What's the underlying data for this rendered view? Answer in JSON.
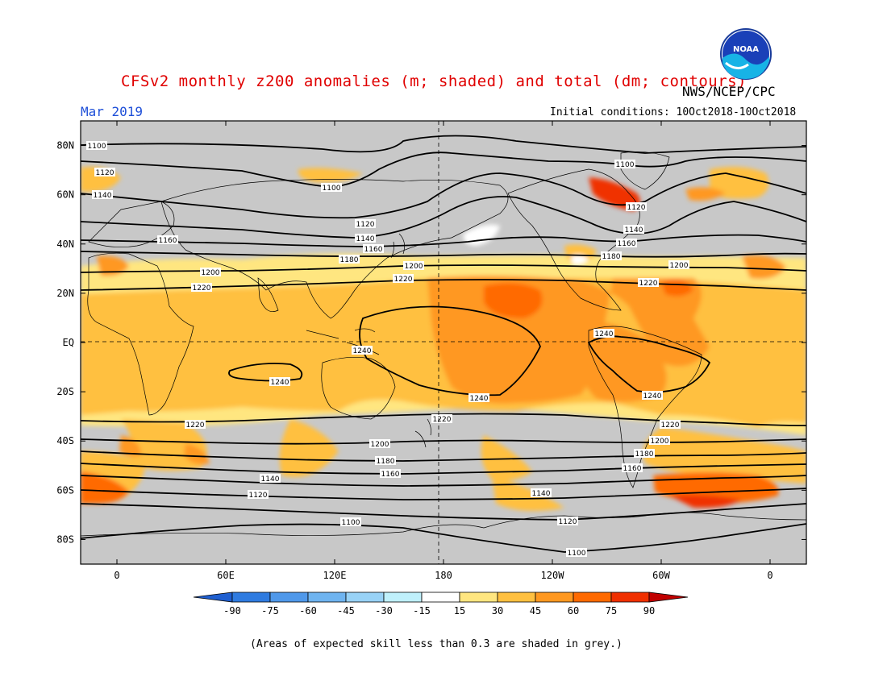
{
  "title": "CFSv2 monthly z200 anomalies (m; shaded) and total (dm; contours)",
  "source": "NWS/NCEP/CPC",
  "period": "Mar 2019",
  "initial_conditions": "Initial conditions: 10Oct2018-10Oct2018",
  "note": "(Areas of expected skill less than 0.3 are shaded in grey.)",
  "logo_text": "NOAA",
  "lat_labels": [
    "80N",
    "60N",
    "40N",
    "20N",
    "EQ",
    "20S",
    "40S",
    "60S",
    "80S"
  ],
  "lat_values": [
    80,
    60,
    40,
    20,
    0,
    -20,
    -40,
    -60,
    -80
  ],
  "lon_labels": [
    "0",
    "60E",
    "120E",
    "180",
    "120W",
    "60W",
    "0"
  ],
  "lon_values": [
    0,
    60,
    120,
    180,
    240,
    300,
    360
  ],
  "colorbar": {
    "levels": [
      "-90",
      "-75",
      "-60",
      "-45",
      "-30",
      "-15",
      "15",
      "30",
      "45",
      "60",
      "75",
      "90"
    ],
    "colors": [
      "#1f5fd0",
      "#2f7be0",
      "#4f98ea",
      "#6fb4f0",
      "#98d2f6",
      "#bff0fb",
      "#ffffff",
      "#ffe680",
      "#ffc040",
      "#ff9820",
      "#ff6a00",
      "#f03000",
      "#c00000"
    ]
  },
  "colors": {
    "grey_mask": "#c8c8c8",
    "land": "#bdbdbd",
    "contour": "#000000",
    "equator_line": "#000000"
  },
  "contour_labels": [
    "1100",
    "1120",
    "1140",
    "1160",
    "1180",
    "1200",
    "1220",
    "1240"
  ]
}
